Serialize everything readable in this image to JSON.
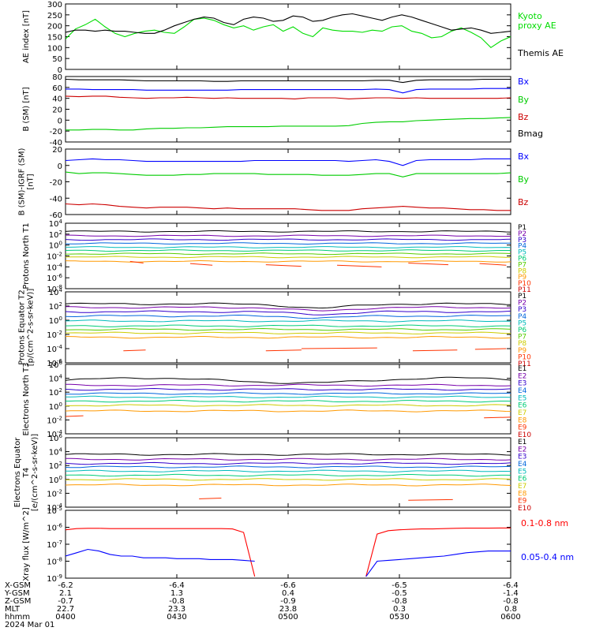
{
  "chart_data": [
    {
      "type": "line",
      "ylabel": "AE index [nT]",
      "yticks": [
        "300",
        "250",
        "200",
        "150",
        "100",
        "50",
        "0"
      ],
      "ylim": [
        0,
        300
      ],
      "series": [
        {
          "name": "Kyoto proxy AE",
          "color": "#00dd00",
          "values": [
            140,
            185,
            205,
            230,
            195,
            165,
            150,
            165,
            175,
            180,
            170,
            165,
            195,
            230,
            235,
            225,
            205,
            190,
            200,
            180,
            195,
            205,
            175,
            195,
            165,
            150,
            190,
            180,
            175,
            175,
            170,
            180,
            175,
            195,
            200,
            175,
            165,
            145,
            150,
            175,
            190,
            170,
            145,
            100,
            130,
            150
          ]
        },
        {
          "name": "Themis AE",
          "color": "#000000",
          "values": [
            170,
            180,
            180,
            175,
            180,
            175,
            175,
            170,
            165,
            165,
            180,
            200,
            215,
            230,
            240,
            235,
            215,
            205,
            230,
            240,
            235,
            220,
            225,
            245,
            240,
            220,
            225,
            240,
            250,
            255,
            245,
            235,
            225,
            240,
            250,
            240,
            225,
            210,
            195,
            180,
            185,
            190,
            180,
            165,
            170,
            175
          ]
        }
      ],
      "legend": [
        "Kyoto",
        "proxy AE",
        "Themis AE"
      ]
    },
    {
      "type": "line",
      "ylabel": "B (SM) [nT]",
      "yticks": [
        "80",
        "60",
        "40",
        "20",
        "0",
        "-20",
        "-40"
      ],
      "ylim": [
        -40,
        80
      ],
      "series": [
        {
          "name": "Bx",
          "color": "#0000ff",
          "values": [
            57,
            57,
            56,
            56,
            56,
            56,
            55,
            55,
            55,
            55,
            55,
            55,
            55,
            56,
            56,
            56,
            56,
            56,
            56,
            56,
            56,
            56,
            56,
            57,
            56,
            50,
            56,
            57,
            57,
            57,
            57,
            58,
            58,
            58
          ]
        },
        {
          "name": "By",
          "color": "#00cc00",
          "values": [
            -18,
            -18,
            -17,
            -17,
            -18,
            -18,
            -16,
            -15,
            -15,
            -14,
            -14,
            -13,
            -12,
            -12,
            -12,
            -12,
            -11,
            -11,
            -11,
            -11,
            -11,
            -10,
            -6,
            -4,
            -3,
            -3,
            -1,
            0,
            1,
            2,
            3,
            3,
            4,
            5
          ]
        },
        {
          "name": "Bz",
          "color": "#cc0000",
          "values": [
            44,
            43,
            44,
            44,
            42,
            41,
            40,
            41,
            41,
            42,
            41,
            40,
            41,
            40,
            40,
            40,
            40,
            39,
            41,
            41,
            41,
            39,
            40,
            41,
            41,
            40,
            41,
            40,
            40,
            40,
            40,
            40,
            40,
            41
          ]
        },
        {
          "name": "Bmag",
          "color": "#000000",
          "values": [
            75,
            74,
            74,
            74,
            74,
            73,
            72,
            72,
            72,
            72,
            72,
            71,
            71,
            72,
            72,
            72,
            72,
            72,
            72,
            72,
            72,
            72,
            72,
            73,
            73,
            69,
            73,
            74,
            74,
            74,
            74,
            75,
            75,
            75
          ]
        }
      ],
      "legend": [
        "Bx",
        "By",
        "Bz",
        "Bmag"
      ]
    },
    {
      "type": "line",
      "ylabel": "B (SM)-IGRF (SM) [nT]",
      "yticks": [
        "20",
        "0",
        "-20",
        "-40",
        "-60"
      ],
      "ylim": [
        -60,
        20
      ],
      "series": [
        {
          "name": "Bx",
          "color": "#0000ff",
          "values": [
            6,
            7,
            8,
            7,
            7,
            6,
            5,
            5,
            5,
            5,
            5,
            5,
            5,
            5,
            6,
            6,
            6,
            6,
            6,
            6,
            6,
            5,
            6,
            7,
            5,
            0,
            6,
            7,
            7,
            7,
            7,
            8,
            8,
            8
          ]
        },
        {
          "name": "By",
          "color": "#00cc00",
          "values": [
            -8,
            -10,
            -9,
            -9,
            -10,
            -11,
            -12,
            -12,
            -12,
            -11,
            -11,
            -10,
            -10,
            -10,
            -10,
            -11,
            -11,
            -11,
            -11,
            -12,
            -12,
            -12,
            -11,
            -10,
            -10,
            -14,
            -10,
            -10,
            -10,
            -10,
            -10,
            -10,
            -10,
            -9
          ]
        },
        {
          "name": "Bz",
          "color": "#cc0000",
          "values": [
            -47,
            -48,
            -47,
            -48,
            -50,
            -51,
            -52,
            -51,
            -51,
            -51,
            -52,
            -53,
            -52,
            -53,
            -53,
            -53,
            -53,
            -53,
            -54,
            -55,
            -55,
            -55,
            -53,
            -52,
            -51,
            -50,
            -51,
            -52,
            -52,
            -53,
            -54,
            -54,
            -55,
            -55
          ]
        }
      ],
      "legend": [
        "Bx",
        "By",
        "Bz"
      ]
    },
    {
      "type": "line",
      "ylabel": "Protons North T1",
      "log": true,
      "yticks": [
        "10^4",
        "10^2",
        "10^0",
        "10^-2",
        "10^-4",
        "10^-6",
        "10^-8"
      ],
      "ylim": [
        -8,
        4
      ],
      "channels": [
        "P1",
        "P2",
        "P3",
        "P4",
        "P5",
        "P6",
        "P7",
        "P8",
        "P9",
        "P10",
        "P11"
      ],
      "channel_colors": [
        "#000000",
        "#7700aa",
        "#3300cc",
        "#0066dd",
        "#00bbbb",
        "#00cc77",
        "#55cc00",
        "#cccc00",
        "#ff9900",
        "#ff3300",
        "#cc0000"
      ],
      "levels": [
        2.5,
        1.7,
        1.0,
        0.3,
        -0.4,
        -1.0,
        -1.6,
        -2.2,
        -3.0
      ],
      "gap_segments": [
        [
          0.145,
          0.175,
          -3.0
        ],
        [
          0.28,
          0.33,
          -3.4
        ],
        [
          0.45,
          0.53,
          -3.6
        ],
        [
          0.61,
          0.71,
          -3.7
        ],
        [
          0.77,
          0.86,
          -3.3
        ],
        [
          0.93,
          0.99,
          -3.4
        ]
      ]
    },
    {
      "type": "line",
      "ylabel": "Protons Equator T2 [p/(cm^2-s-sr-keV)]",
      "log": true,
      "yticks": [
        "10^4",
        "10^2",
        "10^0",
        "10^-2",
        "10^-4",
        "10^-6"
      ],
      "ylim": [
        -6,
        4
      ],
      "channels": [
        "P1",
        "P2",
        "P3",
        "P4",
        "P5",
        "P6",
        "P7",
        "P8",
        "P9",
        "P10",
        "P11"
      ],
      "channel_colors": [
        "#000000",
        "#7700aa",
        "#3300cc",
        "#0066dd",
        "#00bbbb",
        "#00cc77",
        "#55cc00",
        "#cccc00",
        "#ff9900",
        "#ff3300",
        "#cc0000"
      ],
      "levels": [
        2.3,
        1.8,
        1.2,
        0.6,
        -0.1,
        -0.8,
        -1.3,
        -1.8,
        -2.4
      ],
      "dip_center": 0.57,
      "gap_segments": [
        [
          0.13,
          0.18,
          -4.3
        ],
        [
          0.45,
          0.53,
          -4.3
        ],
        [
          0.53,
          0.7,
          -4.0
        ],
        [
          0.78,
          0.88,
          -4.3
        ],
        [
          0.92,
          0.99,
          -4.1
        ]
      ]
    },
    {
      "type": "line",
      "ylabel": "Electrons North T3",
      "log": true,
      "yticks": [
        "10^6",
        "10^4",
        "10^2",
        "10^0",
        "10^-2",
        "10^-4"
      ],
      "ylim": [
        -4,
        6
      ],
      "channels": [
        "E1",
        "E2",
        "E3",
        "E4",
        "E5",
        "E6",
        "E7",
        "E8",
        "E9",
        "E10"
      ],
      "channel_colors": [
        "#000000",
        "#7700aa",
        "#3300cc",
        "#0066dd",
        "#00bbbb",
        "#00cc77",
        "#cccc00",
        "#ff9900",
        "#ff3300",
        "#cc0000"
      ],
      "levels": [
        3.7,
        3.0,
        2.4,
        1.8,
        1.3,
        0.7,
        0.1,
        -0.7
      ],
      "gap_segments": [
        [
          0.0,
          0.04,
          -1.5
        ],
        [
          0.94,
          1.0,
          -1.7
        ]
      ]
    },
    {
      "type": "line",
      "ylabel": "Electrons Equator T4 [e/(cm^2-s-sr-keV)]",
      "log": true,
      "yticks": [
        "10^6",
        "10^4",
        "10^2",
        "10^0",
        "10^-2",
        "10^-4"
      ],
      "ylim": [
        -4,
        6
      ],
      "channels": [
        "E1",
        "E2",
        "E3",
        "E4",
        "E5",
        "E6",
        "E7",
        "E8",
        "E9",
        "E10"
      ],
      "channel_colors": [
        "#000000",
        "#7700aa",
        "#3300cc",
        "#0066dd",
        "#00bbbb",
        "#00cc77",
        "#cccc00",
        "#ff9900",
        "#ff3300",
        "#cc0000"
      ],
      "levels": [
        3.6,
        2.9,
        2.3,
        1.8,
        1.2,
        0.6,
        0.0,
        -0.8
      ],
      "gap_segments": [
        [
          0.3,
          0.35,
          -2.8
        ],
        [
          0.77,
          0.87,
          -3.0
        ]
      ]
    },
    {
      "type": "line",
      "ylabel": "Xray flux [W/m^2]",
      "log": true,
      "yticks": [
        "10^-5",
        "10^-6",
        "10^-7",
        "10^-8",
        "10^-9"
      ],
      "ylim": [
        -9,
        -5
      ],
      "series": [
        {
          "name": "0.1-0.8 nm",
          "color": "#ff0000",
          "values": [
            -6.15,
            -6.08,
            -6.06,
            -6.06,
            -6.08,
            -6.08,
            -6.08,
            -6.08,
            -6.08,
            -6.08,
            -6.08,
            -6.08,
            -6.08,
            -6.08,
            -6.08,
            -6.1,
            -6.3,
            -8.9,
            null,
            null,
            null,
            null,
            null,
            null,
            null,
            null,
            null,
            -8.9,
            -6.4,
            -6.2,
            -6.15,
            -6.12,
            -6.1,
            -6.1,
            -6.08,
            -6.06,
            -6.05,
            -6.05,
            -6.05,
            -6.04,
            -6.04
          ]
        },
        {
          "name": "0.05-0.4 nm",
          "color": "#0000ff",
          "values": [
            -7.7,
            -7.5,
            -7.3,
            -7.4,
            -7.6,
            -7.7,
            -7.7,
            -7.8,
            -7.8,
            -7.8,
            -7.85,
            -7.85,
            -7.85,
            -7.9,
            -7.9,
            -7.9,
            -7.95,
            -8.0,
            null,
            null,
            null,
            null,
            null,
            null,
            null,
            null,
            null,
            -8.9,
            -8.0,
            -7.95,
            -7.9,
            -7.85,
            -7.8,
            -7.75,
            -7.7,
            -7.6,
            -7.5,
            -7.45,
            -7.4,
            -7.4,
            -7.4
          ]
        }
      ],
      "legend": [
        "0.1-0.8 nm",
        "0.05-0.4 nm"
      ]
    }
  ],
  "ephemeris": {
    "row_labels": [
      "X-GSM",
      "Y-GSM",
      "Z-GSM",
      "MLT",
      "hhmm",
      "2024 Mar 01"
    ],
    "columns": [
      {
        "x": "-6.2",
        "y": "2.1",
        "z": "-0.7",
        "mlt": "22.7",
        "hhmm": "0400"
      },
      {
        "x": "-6.4",
        "y": "1.3",
        "z": "-0.8",
        "mlt": "23.3",
        "hhmm": "0430"
      },
      {
        "x": "-6.6",
        "y": "0.4",
        "z": "-0.9",
        "mlt": "23.8",
        "hhmm": "0500"
      },
      {
        "x": "-6.5",
        "y": "-0.5",
        "z": "-0.8",
        "mlt": "0.3",
        "hhmm": "0530"
      },
      {
        "x": "-6.4",
        "y": "-1.4",
        "z": "-0.8",
        "mlt": "0.8",
        "hhmm": "0600"
      }
    ]
  }
}
